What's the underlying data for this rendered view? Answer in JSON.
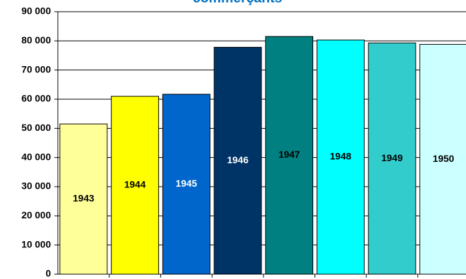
{
  "chart_data": {
    "type": "bar",
    "title": "commerçants",
    "categories": [
      "1943",
      "1944",
      "1945",
      "1946",
      "1947",
      "1948",
      "1949",
      "1950"
    ],
    "values": [
      51500,
      61000,
      61700,
      77800,
      81500,
      80300,
      79300,
      78800
    ],
    "colors": [
      "#ffff99",
      "#ffff00",
      "#0066cc",
      "#003366",
      "#008080",
      "#00ffff",
      "#33cccc",
      "#ccffff"
    ],
    "ylim": [
      0,
      90000
    ],
    "yticks": [
      {
        "value": 0,
        "label": "0"
      },
      {
        "value": 10000,
        "label": "10 000"
      },
      {
        "value": 20000,
        "label": "20 000"
      },
      {
        "value": 30000,
        "label": "30 000"
      },
      {
        "value": 40000,
        "label": "40 000"
      },
      {
        "value": 50000,
        "label": "50 000"
      },
      {
        "value": 60000,
        "label": "60 000"
      },
      {
        "value": 70000,
        "label": "70 000"
      },
      {
        "value": 80000,
        "label": "80 000"
      },
      {
        "value": 90000,
        "label": "90 000"
      }
    ],
    "grid": true
  }
}
